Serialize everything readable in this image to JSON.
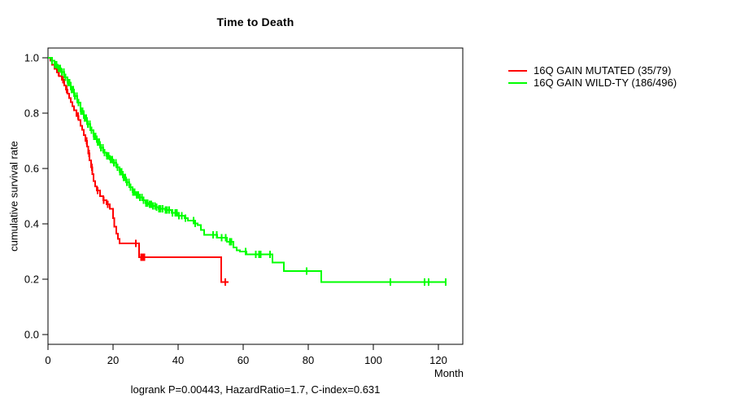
{
  "figure": {
    "title": "Time to Death",
    "footer": "logrank P=0.00443, HazardRatio=1.7, C-index=0.631"
  },
  "legend": {
    "position": "right-outside",
    "items": [
      {
        "label": "16Q GAIN MUTATED (35/79)",
        "color": "#ff0000"
      },
      {
        "label": "16Q GAIN WILD-TY (186/496)",
        "color": "#00ff00"
      }
    ]
  },
  "chart_data": {
    "type": "line",
    "subtype": "kaplan-meier-step-survival",
    "title": "Time to Death",
    "xlabel": "Month",
    "ylabel": "cumulative survival rate",
    "annotation": "logrank P=0.00443, HazardRatio=1.7, C-index=0.631",
    "xlim": [
      0,
      127.5
    ],
    "ylim": [
      0.0,
      1.0
    ],
    "x_ticks": [
      0,
      20,
      40,
      60,
      80,
      100,
      120
    ],
    "y_ticks": [
      0.0,
      0.2,
      0.4,
      0.6,
      0.8,
      1.0
    ],
    "grid": false,
    "legend_position": "right-outside",
    "series": [
      {
        "name": "16Q GAIN MUTATED (35/79)",
        "color": "#ff0000",
        "events": 35,
        "n": 79,
        "end_month": 55.5,
        "points": [
          [
            0,
            1.0
          ],
          [
            0.7,
            0.99
          ],
          [
            1.3,
            0.975
          ],
          [
            2,
            0.96
          ],
          [
            2.7,
            0.947
          ],
          [
            3.4,
            0.934
          ],
          [
            4.2,
            0.92
          ],
          [
            5,
            0.9
          ],
          [
            5.5,
            0.885
          ],
          [
            6,
            0.87
          ],
          [
            6.5,
            0.855
          ],
          [
            7,
            0.84
          ],
          [
            7.5,
            0.825
          ],
          [
            8,
            0.81
          ],
          [
            8.7,
            0.79
          ],
          [
            9.4,
            0.775
          ],
          [
            10,
            0.755
          ],
          [
            10.5,
            0.74
          ],
          [
            11,
            0.72
          ],
          [
            11.5,
            0.7
          ],
          [
            12,
            0.68
          ],
          [
            12.4,
            0.655
          ],
          [
            12.8,
            0.63
          ],
          [
            13.2,
            0.605
          ],
          [
            13.6,
            0.58
          ],
          [
            14,
            0.555
          ],
          [
            14.5,
            0.535
          ],
          [
            15,
            0.52
          ],
          [
            16,
            0.5
          ],
          [
            17,
            0.485
          ],
          [
            18,
            0.47
          ],
          [
            19,
            0.455
          ],
          [
            20,
            0.42
          ],
          [
            20.4,
            0.39
          ],
          [
            21,
            0.365
          ],
          [
            21.5,
            0.345
          ],
          [
            22,
            0.33
          ],
          [
            28,
            0.28
          ],
          [
            53.2,
            0.19
          ]
        ],
        "censor_marks": [
          3.3,
          4.6,
          5.8,
          9.2,
          11.9,
          12.6,
          13.5,
          15.3,
          17.1,
          18.4,
          27.0,
          28.6,
          29.1,
          29.6,
          54.5
        ]
      },
      {
        "name": "16Q GAIN WILD-TY (186/496)",
        "color": "#00ff00",
        "events": 186,
        "n": 496,
        "end_month": 122.5,
        "points": [
          [
            0,
            1.0
          ],
          [
            1,
            0.99
          ],
          [
            2,
            0.975
          ],
          [
            3,
            0.962
          ],
          [
            4,
            0.948
          ],
          [
            5,
            0.93
          ],
          [
            6,
            0.91
          ],
          [
            7,
            0.885
          ],
          [
            8,
            0.862
          ],
          [
            9,
            0.838
          ],
          [
            10,
            0.808
          ],
          [
            11,
            0.782
          ],
          [
            12,
            0.76
          ],
          [
            13,
            0.738
          ],
          [
            14,
            0.716
          ],
          [
            15,
            0.695
          ],
          [
            16,
            0.675
          ],
          [
            17,
            0.658
          ],
          [
            18,
            0.645
          ],
          [
            19,
            0.632
          ],
          [
            20,
            0.62
          ],
          [
            21,
            0.605
          ],
          [
            22,
            0.588
          ],
          [
            23,
            0.568
          ],
          [
            24,
            0.55
          ],
          [
            25,
            0.532
          ],
          [
            26,
            0.515
          ],
          [
            27,
            0.505
          ],
          [
            28,
            0.495
          ],
          [
            29,
            0.485
          ],
          [
            30,
            0.475
          ],
          [
            31,
            0.47
          ],
          [
            32,
            0.465
          ],
          [
            33,
            0.46
          ],
          [
            34,
            0.455
          ],
          [
            36,
            0.45
          ],
          [
            38,
            0.44
          ],
          [
            40,
            0.43
          ],
          [
            42,
            0.42
          ],
          [
            43,
            0.412
          ],
          [
            45,
            0.402
          ],
          [
            46,
            0.395
          ],
          [
            47,
            0.378
          ],
          [
            48,
            0.36
          ],
          [
            52,
            0.35
          ],
          [
            55,
            0.335
          ],
          [
            57,
            0.315
          ],
          [
            58,
            0.305
          ],
          [
            59,
            0.3
          ],
          [
            61,
            0.29
          ],
          [
            69,
            0.26
          ],
          [
            72.5,
            0.23
          ],
          [
            84,
            0.19
          ]
        ],
        "censor_marks": [
          1.2,
          2.1,
          2.6,
          3.2,
          3.8,
          4.3,
          4.9,
          5.4,
          6.1,
          6.6,
          7.2,
          7.7,
          8.3,
          8.9,
          9.4,
          10.1,
          10.6,
          11.2,
          11.8,
          12.3,
          12.9,
          13.4,
          14.1,
          14.6,
          15.2,
          15.8,
          16.3,
          16.9,
          17.4,
          18.1,
          18.6,
          19.2,
          19.8,
          20.3,
          20.9,
          21.4,
          22.1,
          22.6,
          23.2,
          23.8,
          24.3,
          24.9,
          25.4,
          26.1,
          26.6,
          27.2,
          27.8,
          28.3,
          28.9,
          29.4,
          30.1,
          30.6,
          31.2,
          31.8,
          32.3,
          32.9,
          33.4,
          34.1,
          34.6,
          35.2,
          36.1,
          36.6,
          37.2,
          38.3,
          39.1,
          39.6,
          40.2,
          41.1,
          42.3,
          44.8,
          45.2,
          50.8,
          51.9,
          53.4,
          54.6,
          55.9,
          56.4,
          60.7,
          63.9,
          64.9,
          65.4,
          68.2,
          79.5,
          105.2,
          115.7,
          117.0,
          122.3
        ]
      }
    ]
  }
}
